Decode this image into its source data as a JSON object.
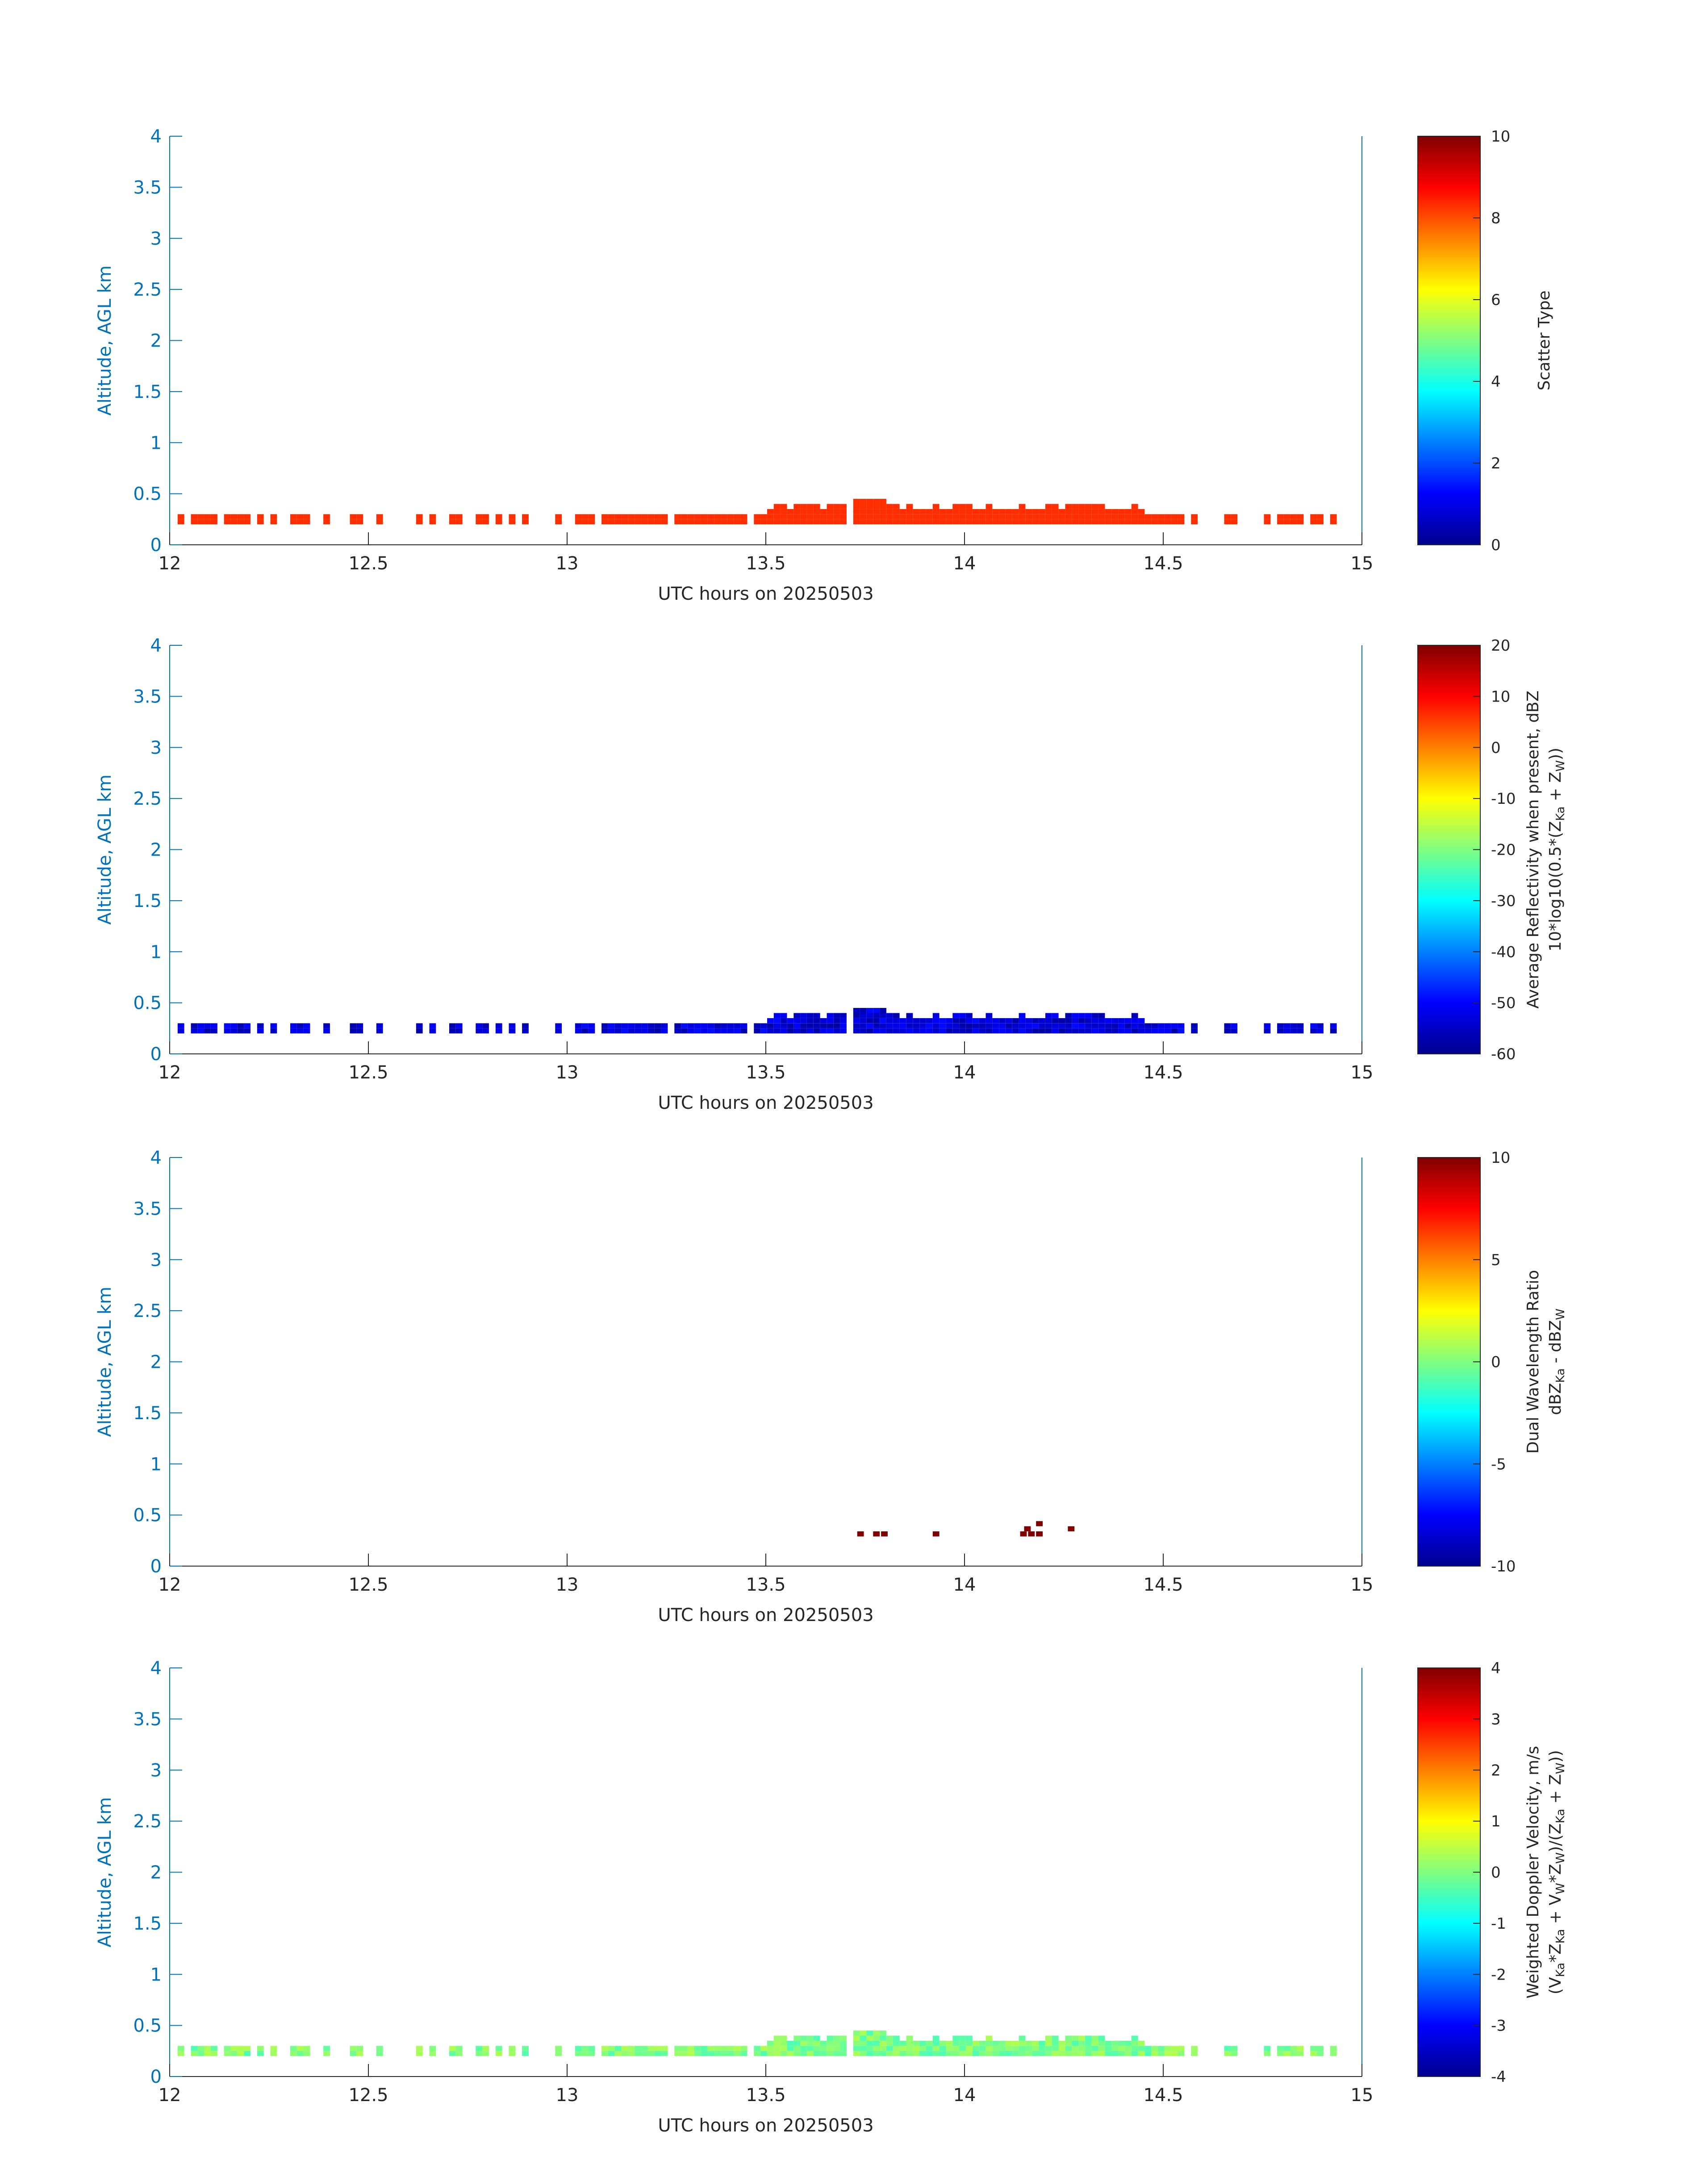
{
  "figure": {
    "background": "#ffffff",
    "axis_color": "#0072BD",
    "text_color": "#262626",
    "colormap": "jet"
  },
  "chart_data": [
    {
      "type": "heatmap",
      "xlabel": "UTC hours on 20250503",
      "ylabel": "Altitude, AGL km",
      "xlim": [
        12,
        15
      ],
      "ylim": [
        0,
        4
      ],
      "xticks": [
        "12",
        "12.5",
        "13",
        "13.5",
        "14",
        "14.5",
        "15"
      ],
      "yticks": [
        "0",
        "0.5",
        "1",
        "1.5",
        "2",
        "2.5",
        "3",
        "3.5",
        "4"
      ],
      "colorbar": {
        "label": [
          "Scatter Type"
        ],
        "ticks": [
          "0",
          "2",
          "4",
          "6",
          "8",
          "10"
        ],
        "range": [
          0,
          10
        ]
      },
      "field": "scatter",
      "value": 8.3
    },
    {
      "type": "heatmap",
      "xlabel": "UTC hours on 20250503",
      "ylabel": "Altitude, AGL km",
      "xlim": [
        12,
        15
      ],
      "ylim": [
        0,
        4
      ],
      "xticks": [
        "12",
        "12.5",
        "13",
        "13.5",
        "14",
        "14.5",
        "15"
      ],
      "yticks": [
        "0",
        "0.5",
        "1",
        "1.5",
        "2",
        "2.5",
        "3",
        "3.5",
        "4"
      ],
      "colorbar": {
        "label": [
          "Average Reflectivity when present, dBZ",
          "10*log10(0.5*(Z",
          "Ka",
          " + Z",
          "W",
          "))"
        ],
        "ticks": [
          "-60",
          "-50",
          "-40",
          "-30",
          "-20",
          "-10",
          "0",
          "10",
          "20"
        ],
        "range": [
          -60,
          20
        ]
      },
      "field": "reflectivity",
      "value": -55
    },
    {
      "type": "heatmap",
      "xlabel": "UTC hours on 20250503",
      "ylabel": "Altitude, AGL km",
      "xlim": [
        12,
        15
      ],
      "ylim": [
        0,
        4
      ],
      "xticks": [
        "12",
        "12.5",
        "13",
        "13.5",
        "14",
        "14.5",
        "15"
      ],
      "yticks": [
        "0",
        "0.5",
        "1",
        "1.5",
        "2",
        "2.5",
        "3",
        "3.5",
        "4"
      ],
      "colorbar": {
        "label": [
          "Dual Wavelength Ratio",
          "dBZ",
          "Ka",
          " - dBZ",
          "W"
        ],
        "ticks": [
          "-10",
          "-5",
          "0",
          "5",
          "10"
        ],
        "range": [
          -10,
          10
        ]
      },
      "field": "dwr",
      "value": 10,
      "cells": [
        {
          "t": 13.73,
          "z": 0.29
        },
        {
          "t": 13.77,
          "z": 0.29
        },
        {
          "t": 13.79,
          "z": 0.29
        },
        {
          "t": 13.92,
          "z": 0.29
        },
        {
          "t": 14.14,
          "z": 0.29
        },
        {
          "t": 14.15,
          "z": 0.34
        },
        {
          "t": 14.16,
          "z": 0.29
        },
        {
          "t": 14.18,
          "z": 0.29
        },
        {
          "t": 14.18,
          "z": 0.39
        },
        {
          "t": 14.26,
          "z": 0.34
        }
      ]
    },
    {
      "type": "heatmap",
      "xlabel": "UTC hours on 20250503",
      "ylabel": "Altitude, AGL km",
      "xlim": [
        12,
        15
      ],
      "ylim": [
        0,
        4
      ],
      "xticks": [
        "12",
        "12.5",
        "13",
        "13.5",
        "14",
        "14.5",
        "15"
      ],
      "yticks": [
        "0",
        "0.5",
        "1",
        "1.5",
        "2",
        "2.5",
        "3",
        "3.5",
        "4"
      ],
      "colorbar": {
        "label": [
          "Weighted Doppler Velocity, m/s",
          "(V",
          "Ka",
          "*Z",
          "Ka",
          " + V",
          "W",
          "*Z",
          "W",
          ")/(Z",
          "Ka",
          " + Z",
          "W",
          "))"
        ],
        "ticks": [
          "-4",
          "-3",
          "-2",
          "-1",
          "0",
          "1",
          "2",
          "3",
          "4"
        ],
        "range": [
          -4,
          4
        ]
      },
      "field": "velocity",
      "value": 0
    }
  ]
}
